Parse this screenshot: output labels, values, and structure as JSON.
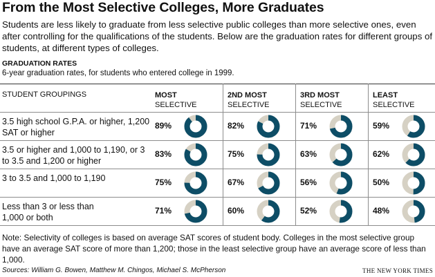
{
  "title": "From the Most Selective Colleges, More Graduates",
  "intro": "Students are less likely to graduate from less selective public colleges than more selective ones, even after controlling for the qualifications of the students. Below are the graduation rates for different groups of students, at different types of colleges.",
  "subhead": "GRADUATION RATES",
  "subdesc": "6-year graduation rates, for students who entered college in 1999.",
  "group_header": "STUDENT GROUPINGS",
  "colors": {
    "filled": "#0d4d66",
    "empty": "#d6d1c4"
  },
  "chart_data": {
    "type": "table",
    "columns": [
      {
        "line1": "MOST",
        "line2": "SELECTIVE"
      },
      {
        "line1": "2ND MOST",
        "line2": "SELECTIVE"
      },
      {
        "line1": "3RD MOST",
        "line2": "SELECTIVE"
      },
      {
        "line1": "LEAST",
        "line2": "SELECTIVE"
      }
    ],
    "rows": [
      {
        "label": "3.5 high school G.P.A. or higher, 1,200 SAT or higher",
        "values": [
          89,
          82,
          71,
          59
        ]
      },
      {
        "label": "3.5 or higher and 1,000 to 1,190, or 3 to 3.5 and 1,200 or higher",
        "values": [
          83,
          75,
          63,
          62
        ]
      },
      {
        "label": "3 to 3.5 and 1,000 to 1,190",
        "values": [
          75,
          67,
          56,
          50
        ]
      },
      {
        "label": "Less than 3 or less than 1,000 or both",
        "values": [
          71,
          60,
          52,
          48
        ]
      }
    ],
    "unit": "%"
  },
  "note": "Note: Selectivity of colleges is based on average SAT scores of student body. Colleges in the most selective group have an average SAT score of more than 1,200; those in the least selective group have an average score of less than 1,000.",
  "sources": "Sources: William G. Bowen, Matthew M. Chingos, Michael S. McPherson",
  "credit": "THE NEW YORK TIMES"
}
